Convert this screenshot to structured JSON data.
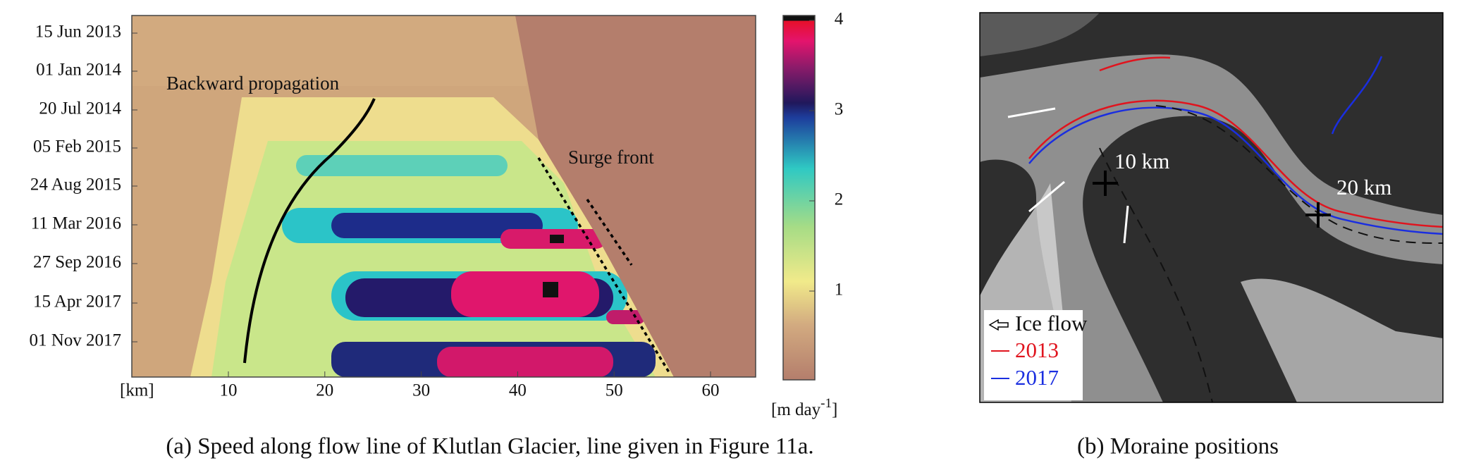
{
  "panel_a": {
    "y_labels": [
      "15 Jun 2013",
      "01 Jan 2014",
      "20 Jul 2014",
      "05 Feb 2015",
      "24 Aug 2015",
      "11 Mar 2016",
      "27 Sep 2016",
      "15 Apr 2017",
      "01 Nov 2017"
    ],
    "x_unit": "[km]",
    "x_labels": [
      "10",
      "20",
      "30",
      "40",
      "50",
      "60"
    ],
    "colorbar_labels": [
      "1",
      "2",
      "3",
      "4"
    ],
    "colorbar_unit": "[m   day",
    "colorbar_unit_exp": "-1",
    "colorbar_unit_end": "]",
    "annotations": [
      "Backward propagation",
      "Surge front"
    ],
    "caption": "(a) Speed along flow  line of Klutlan Glacier, line given in Figure 11a."
  },
  "panel_b": {
    "labels": [
      "10  km",
      "20  km"
    ],
    "legend": [
      "Ice flow",
      "2013",
      "2017"
    ],
    "caption": "(b) Moraine positions"
  }
}
